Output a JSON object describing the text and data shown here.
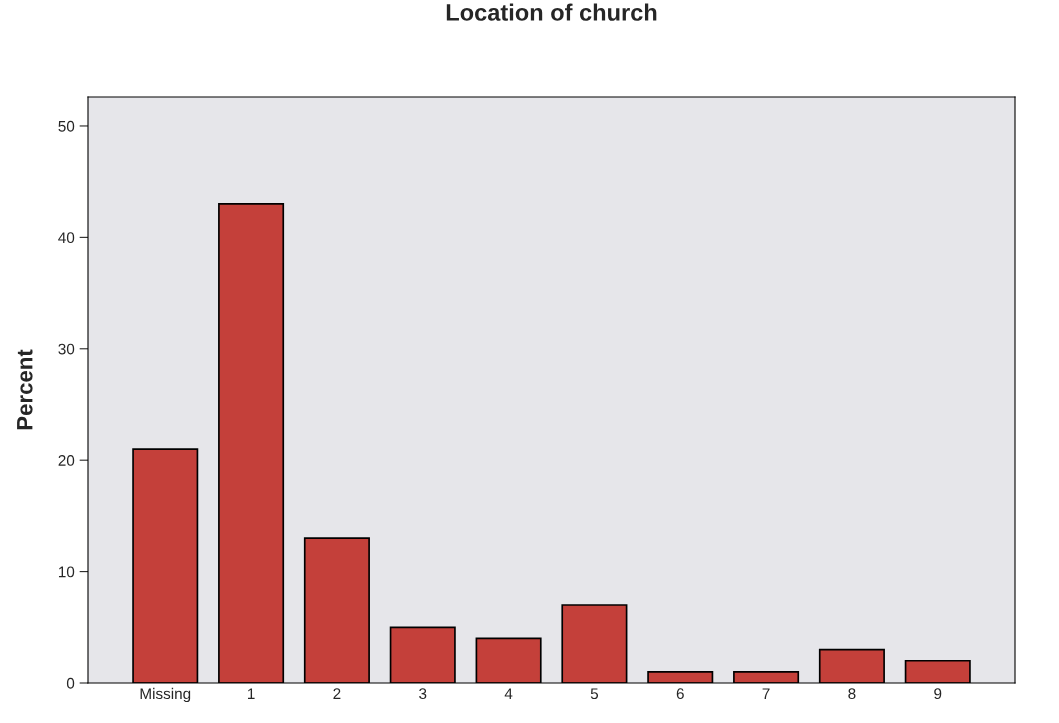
{
  "chart_data": {
    "type": "bar",
    "title": "Location of church",
    "ylabel": "Percent",
    "categories": [
      "Missing",
      "1",
      "2",
      "3",
      "4",
      "5",
      "6",
      "7",
      "8",
      "9"
    ],
    "values": [
      21,
      43,
      13,
      5,
      4,
      7,
      1,
      1,
      3,
      2
    ],
    "color": "#c4403a",
    "ylim": [
      0,
      52.6
    ],
    "yticks": [
      0,
      10,
      20,
      30,
      40,
      50
    ],
    "grid": false,
    "legend": false
  }
}
